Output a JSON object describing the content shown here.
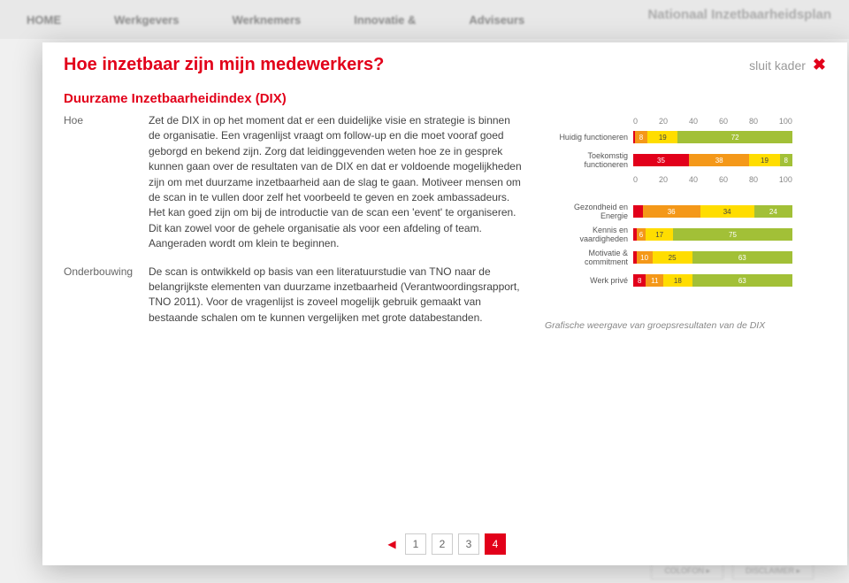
{
  "background": {
    "nav_items": [
      "HOME",
      "Werkgevers",
      "Werknemers",
      "Innovatie &",
      "Adviseurs"
    ],
    "logo": "Nationaal Inzetbaarheidsplan",
    "bottom_btns": [
      "COLOFON ▸",
      "DISCLAIMER ▸"
    ]
  },
  "modal": {
    "title": "Hoe inzetbaar zijn mijn medewerkers?",
    "close_label": "sluit kader",
    "subtitle": "Duurzame Inzetbaarheidindex (DIX)",
    "sections": {
      "hoe": {
        "label": "Hoe",
        "body": "Zet de DIX in op het moment dat er een duidelijke visie en strategie is binnen de organisatie. Een vragenlijst vraagt om follow-up en die moet vooraf goed geborgd en bekend zijn. Zorg dat leidinggevenden weten hoe ze in gesprek kunnen gaan over de resultaten van de DIX en dat er voldoende mogelijkheden zijn om met duurzame inzetbaarheid aan de slag te gaan. Motiveer mensen om de scan in te vullen door zelf het voorbeeld te geven en zoek ambassadeurs.\nHet kan goed zijn om bij de introductie van de scan een 'event' te organiseren. Dit kan zowel voor de gehele organisatie als voor een afdeling of team.\nAangeraden wordt om klein te beginnen."
      },
      "onderbouwing": {
        "label": "Onderbouwing",
        "body": "De scan is ontwikkeld op basis van een literatuurstudie van TNO naar de belangrijkste elementen van duurzame inzetbaarheid (Verantwoordingsrapport, TNO 2011). Voor de vragenlijst is zoveel mogelijk gebruik gemaakt van bestaande schalen om te kunnen vergelijken met grote databestanden."
      }
    }
  },
  "charts": {
    "ticks": [
      0,
      20,
      40,
      60,
      80,
      100
    ],
    "colors": {
      "red": "#e2001a",
      "orange": "#f49819",
      "yellow": "#ffdd00",
      "green": "#a2c037",
      "label": "#555555"
    },
    "chart1": {
      "rows": [
        {
          "label": "Huidig functioneren",
          "segs": [
            {
              "v": 1,
              "c": "#e2001a",
              "t": ""
            },
            {
              "v": 8,
              "c": "#f49819",
              "t": "8"
            },
            {
              "v": 19,
              "c": "#ffdd00",
              "t": "19"
            },
            {
              "v": 72,
              "c": "#a2c037",
              "t": "72"
            }
          ]
        },
        {
          "label": "Toekomstig functioneren",
          "segs": [
            {
              "v": 35,
              "c": "#e2001a",
              "t": "35"
            },
            {
              "v": 38,
              "c": "#f49819",
              "t": "38"
            },
            {
              "v": 19,
              "c": "#ffdd00",
              "t": "19"
            },
            {
              "v": 8,
              "c": "#a2c037",
              "t": "8"
            }
          ]
        }
      ]
    },
    "chart2": {
      "rows": [
        {
          "label": "Gezondheid en Energie",
          "segs": [
            {
              "v": 6,
              "c": "#e2001a",
              "t": ""
            },
            {
              "v": 36,
              "c": "#f49819",
              "t": "36"
            },
            {
              "v": 34,
              "c": "#ffdd00",
              "t": "34"
            },
            {
              "v": 24,
              "c": "#a2c037",
              "t": "24"
            }
          ]
        },
        {
          "label": "Kennis en vaardigheden",
          "segs": [
            {
              "v": 2,
              "c": "#e2001a",
              "t": ""
            },
            {
              "v": 6,
              "c": "#f49819",
              "t": "6"
            },
            {
              "v": 17,
              "c": "#ffdd00",
              "t": "17"
            },
            {
              "v": 75,
              "c": "#a2c037",
              "t": "75"
            }
          ]
        },
        {
          "label": "Motivatie & commitment",
          "segs": [
            {
              "v": 2,
              "c": "#e2001a",
              "t": ""
            },
            {
              "v": 10,
              "c": "#f49819",
              "t": "10"
            },
            {
              "v": 25,
              "c": "#ffdd00",
              "t": "25"
            },
            {
              "v": 63,
              "c": "#a2c037",
              "t": "63"
            }
          ]
        },
        {
          "label": "Werk privé",
          "segs": [
            {
              "v": 8,
              "c": "#e2001a",
              "t": "8"
            },
            {
              "v": 11,
              "c": "#f49819",
              "t": "11"
            },
            {
              "v": 18,
              "c": "#ffdd00",
              "t": "18"
            },
            {
              "v": 63,
              "c": "#a2c037",
              "t": "63"
            }
          ]
        }
      ]
    },
    "caption": "Grafische weergave van groepsresultaten van de DIX"
  },
  "pager": {
    "pages": [
      "1",
      "2",
      "3",
      "4"
    ],
    "active": 4
  }
}
